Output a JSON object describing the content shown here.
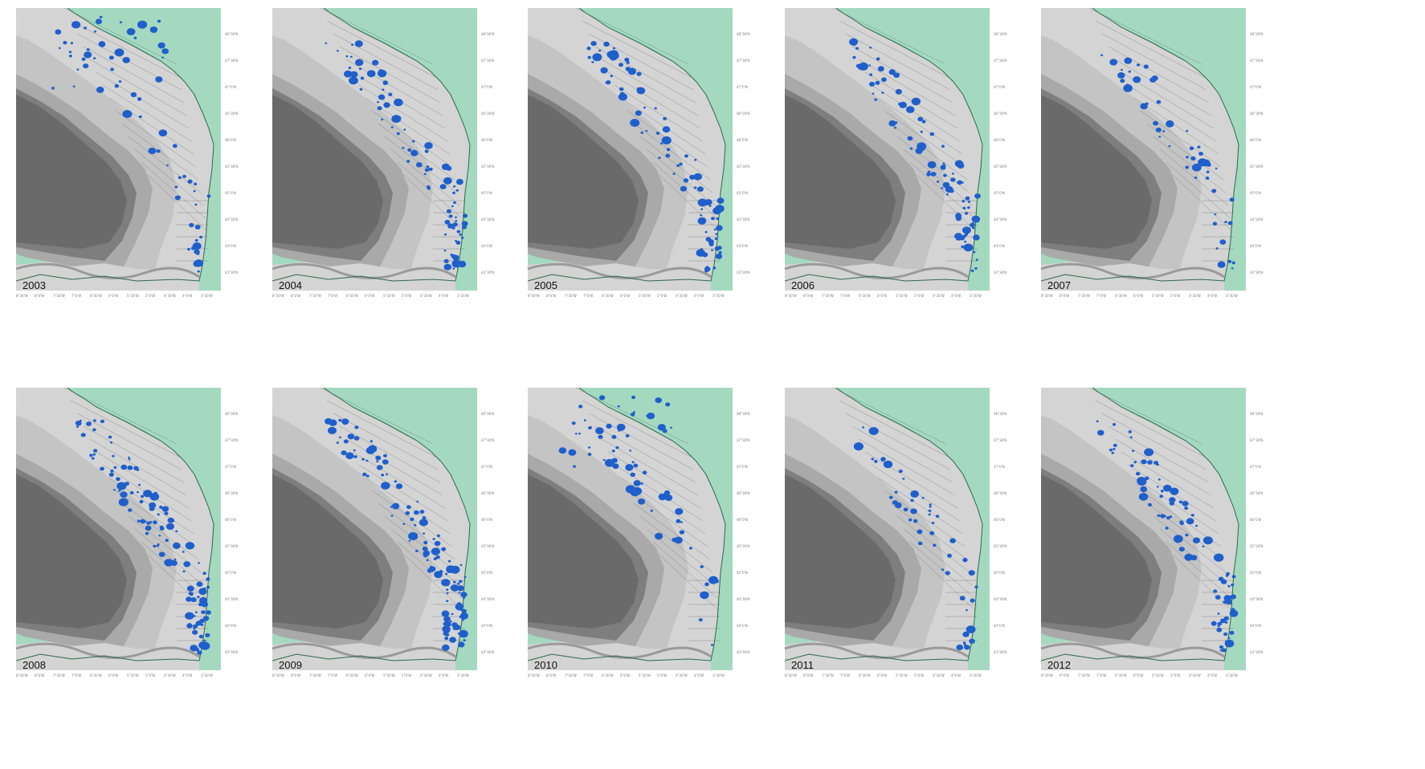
{
  "colors": {
    "land": "#a4d9c0",
    "shelf_light": "#d4d4d4",
    "shelf_mid": "#c4c4c4",
    "slope": "#a9a9a9",
    "deep": "#7e7e7e",
    "abyss": "#6a6a6a",
    "coast": "#2c6a4c",
    "points": "#1f5fcc",
    "transect": "#555555"
  },
  "panels": [
    {
      "year": "2003",
      "pattern": "north"
    },
    {
      "year": "2004",
      "pattern": "mid"
    },
    {
      "year": "2005",
      "pattern": "mid"
    },
    {
      "year": "2006",
      "pattern": "mid"
    },
    {
      "year": "2007",
      "pattern": "sparse"
    },
    {
      "year": "2008",
      "pattern": "dense"
    },
    {
      "year": "2009",
      "pattern": "dense"
    },
    {
      "year": "2010",
      "pattern": "north"
    },
    {
      "year": "2011",
      "pattern": "sparse"
    },
    {
      "year": "2012",
      "pattern": "mid"
    }
  ],
  "lat_ticks": [
    "48°30'N",
    "47°30'N",
    "47°0'N",
    "46°30'N",
    "46°0'N",
    "45°30'N",
    "45°0'N",
    "44°30'N",
    "44°0'N",
    "43°30'N"
  ],
  "lon_ticks": [
    "8°30'W",
    "8°0'W",
    "7°30'W",
    "7°0'W",
    "6°30'W",
    "6°0'W",
    "5°30'W",
    "5°0'W",
    "4°30'W",
    "4°0'W",
    "3°30'W"
  ]
}
